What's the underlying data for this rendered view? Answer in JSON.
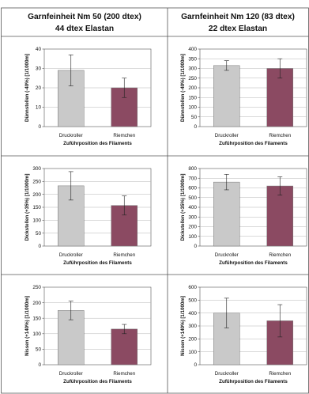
{
  "headers": [
    {
      "line1": "Garnfeinheit Nm 50 (200 dtex)",
      "line2": "44 dtex Elastan"
    },
    {
      "line1": "Garnfeinheit Nm 120 (83 dtex)",
      "line2": "22 dtex Elastan"
    }
  ],
  "colors": {
    "druckroller": "#c9c9c9",
    "riemchen": "#8b4a62",
    "grid": "#b5b5b5",
    "frame": "#555555"
  },
  "chart_data": [
    {
      "type": "bar",
      "row": 0,
      "col": 0,
      "ylabel": "Dünnstellen (-40%) [1/1000m]",
      "xlabel": "Zuführposition des Filaments",
      "categories": [
        "Druckroller",
        "Riemchen"
      ],
      "values": [
        29,
        20
      ],
      "errors": [
        8,
        5
      ],
      "ylim": [
        0,
        40
      ],
      "yticks": [
        0,
        10,
        20,
        30,
        40
      ]
    },
    {
      "type": "bar",
      "row": 0,
      "col": 1,
      "ylabel": "Dünnstellen (-40%) [1/1000m]",
      "xlabel": "Zuführposition des Filaments",
      "categories": [
        "Druckroller",
        "Riemchen"
      ],
      "values": [
        315,
        300
      ],
      "errors": [
        25,
        50
      ],
      "ylim": [
        0,
        400
      ],
      "yticks": [
        0,
        50,
        100,
        150,
        200,
        250,
        300,
        350,
        400
      ]
    },
    {
      "type": "bar",
      "row": 1,
      "col": 0,
      "ylabel": "Dickstellen (+35%) [1/1000m]",
      "xlabel": "Zuführposition des Filaments",
      "categories": [
        "Druckroller",
        "Riemchen"
      ],
      "values": [
        233,
        157
      ],
      "errors": [
        55,
        37
      ],
      "ylim": [
        0,
        300
      ],
      "yticks": [
        0,
        50,
        100,
        150,
        200,
        250,
        300
      ]
    },
    {
      "type": "bar",
      "row": 1,
      "col": 1,
      "ylabel": "Dickstellen (+35%) [1/1000m]",
      "xlabel": "Zuführposition des Filaments",
      "categories": [
        "Druckroller",
        "Riemchen"
      ],
      "values": [
        660,
        620
      ],
      "errors": [
        80,
        95
      ],
      "ylim": [
        0,
        800
      ],
      "yticks": [
        0,
        100,
        200,
        300,
        400,
        500,
        600,
        700,
        800
      ]
    },
    {
      "type": "bar",
      "row": 2,
      "col": 0,
      "ylabel": "Nissen (+140%) [1/1000m]",
      "xlabel": "Zuführposition des Filaments",
      "categories": [
        "Druckroller",
        "Riemchen"
      ],
      "values": [
        175,
        115
      ],
      "errors": [
        30,
        15
      ],
      "ylim": [
        0,
        250
      ],
      "yticks": [
        0,
        50,
        100,
        150,
        200,
        250
      ]
    },
    {
      "type": "bar",
      "row": 2,
      "col": 1,
      "ylabel": "Nissen (+140%) [1/1000m]",
      "xlabel": "Zuführposition des Filaments",
      "categories": [
        "Druckroller",
        "Riemchen"
      ],
      "values": [
        400,
        340
      ],
      "errors": [
        115,
        125
      ],
      "ylim": [
        0,
        600
      ],
      "yticks": [
        0,
        100,
        200,
        300,
        400,
        500,
        600
      ]
    }
  ]
}
